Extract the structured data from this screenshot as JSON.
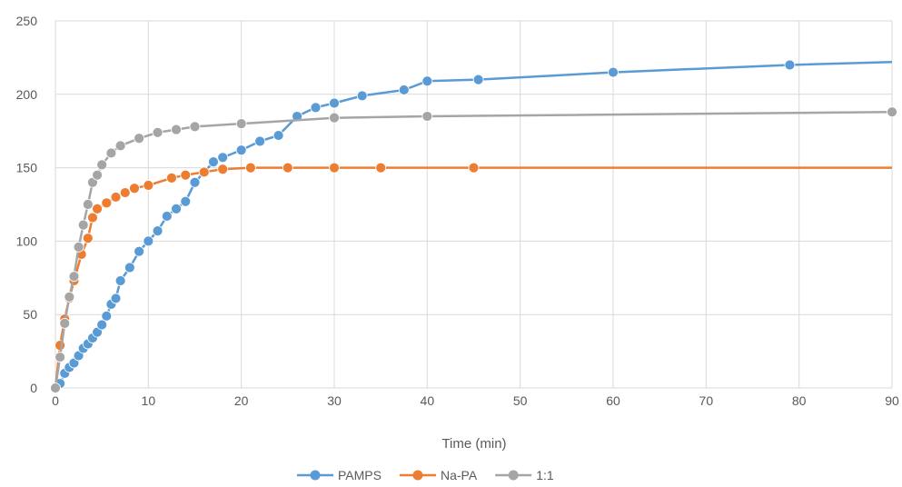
{
  "chart_data": {
    "type": "line",
    "title": "",
    "xlabel": "Time (min)",
    "ylabel": "",
    "xlim": [
      0,
      90
    ],
    "ylim": [
      0,
      250
    ],
    "xticks": [
      0,
      10,
      20,
      30,
      40,
      50,
      60,
      70,
      80,
      90
    ],
    "yticks": [
      0,
      50,
      100,
      150,
      200,
      250
    ],
    "grid": true,
    "legend_position": "bottom",
    "series": [
      {
        "name": "PAMPS",
        "color": "#5B9BD5",
        "points": [
          [
            0,
            0
          ],
          [
            0.5,
            3
          ],
          [
            1,
            10
          ],
          [
            1.5,
            14
          ],
          [
            2,
            17
          ],
          [
            2.5,
            22
          ],
          [
            3,
            27
          ],
          [
            3.5,
            30
          ],
          [
            4,
            34
          ],
          [
            4.5,
            38
          ],
          [
            5,
            43
          ],
          [
            5.5,
            49
          ],
          [
            6,
            57
          ],
          [
            6.5,
            61
          ],
          [
            7,
            73
          ],
          [
            8,
            82
          ],
          [
            9,
            93
          ],
          [
            10,
            100
          ],
          [
            11,
            107
          ],
          [
            12,
            117
          ],
          [
            13,
            122
          ],
          [
            14,
            127
          ],
          [
            15,
            140
          ],
          [
            17,
            154
          ],
          [
            18,
            157
          ],
          [
            20,
            162
          ],
          [
            22,
            168
          ],
          [
            24,
            172
          ],
          [
            26,
            185
          ],
          [
            28,
            191
          ],
          [
            30,
            194
          ],
          [
            33,
            199
          ],
          [
            37.5,
            203
          ],
          [
            40,
            209
          ],
          [
            45.5,
            210
          ],
          [
            60,
            215
          ],
          [
            79,
            220
          ],
          [
            90,
            222
          ]
        ],
        "markers": [
          [
            0,
            0
          ],
          [
            0.5,
            3
          ],
          [
            1,
            10
          ],
          [
            1.5,
            14
          ],
          [
            2,
            17
          ],
          [
            2.5,
            22
          ],
          [
            3,
            27
          ],
          [
            3.5,
            30
          ],
          [
            4,
            34
          ],
          [
            4.5,
            38
          ],
          [
            5,
            43
          ],
          [
            5.5,
            49
          ],
          [
            6,
            57
          ],
          [
            6.5,
            61
          ],
          [
            7,
            73
          ],
          [
            8,
            82
          ],
          [
            9,
            93
          ],
          [
            10,
            100
          ],
          [
            11,
            107
          ],
          [
            12,
            117
          ],
          [
            13,
            122
          ],
          [
            14,
            127
          ],
          [
            15,
            140
          ],
          [
            17,
            154
          ],
          [
            18,
            157
          ],
          [
            20,
            162
          ],
          [
            22,
            168
          ],
          [
            24,
            172
          ],
          [
            26,
            185
          ],
          [
            28,
            191
          ],
          [
            30,
            194
          ],
          [
            33,
            199
          ],
          [
            37.5,
            203
          ],
          [
            40,
            209
          ],
          [
            45.5,
            210
          ],
          [
            60,
            215
          ],
          [
            79,
            220
          ]
        ]
      },
      {
        "name": "Na-PA",
        "color": "#ED7D31",
        "points": [
          [
            0,
            0
          ],
          [
            0.5,
            29
          ],
          [
            1,
            47
          ],
          [
            1.5,
            61
          ],
          [
            2,
            73
          ],
          [
            2.8,
            91
          ],
          [
            3.5,
            102
          ],
          [
            4,
            116
          ],
          [
            4.5,
            122
          ],
          [
            5.5,
            126
          ],
          [
            6.5,
            130
          ],
          [
            7.5,
            133
          ],
          [
            8.5,
            136
          ],
          [
            10,
            138
          ],
          [
            12.5,
            143
          ],
          [
            14,
            145
          ],
          [
            16,
            147
          ],
          [
            18,
            149
          ],
          [
            21,
            150
          ],
          [
            25,
            150
          ],
          [
            30,
            150
          ],
          [
            35,
            150
          ],
          [
            45,
            150
          ],
          [
            90,
            150
          ]
        ],
        "markers": [
          [
            0,
            0
          ],
          [
            0.5,
            29
          ],
          [
            1,
            47
          ],
          [
            1.5,
            61
          ],
          [
            2,
            73
          ],
          [
            2.8,
            91
          ],
          [
            3.5,
            102
          ],
          [
            4,
            116
          ],
          [
            4.5,
            122
          ],
          [
            5.5,
            126
          ],
          [
            6.5,
            130
          ],
          [
            7.5,
            133
          ],
          [
            8.5,
            136
          ],
          [
            10,
            138
          ],
          [
            12.5,
            143
          ],
          [
            14,
            145
          ],
          [
            16,
            147
          ],
          [
            18,
            149
          ],
          [
            21,
            150
          ],
          [
            25,
            150
          ],
          [
            30,
            150
          ],
          [
            35,
            150
          ],
          [
            45,
            150
          ]
        ]
      },
      {
        "name": "1:1",
        "color": "#A5A5A5",
        "points": [
          [
            0,
            0
          ],
          [
            0.5,
            21
          ],
          [
            1,
            44
          ],
          [
            1.5,
            62
          ],
          [
            2,
            76
          ],
          [
            2.5,
            96
          ],
          [
            3,
            111
          ],
          [
            3.5,
            125
          ],
          [
            4,
            140
          ],
          [
            4.5,
            145
          ],
          [
            5,
            152
          ],
          [
            6,
            160
          ],
          [
            7,
            165
          ],
          [
            9,
            170
          ],
          [
            11,
            174
          ],
          [
            13,
            176
          ],
          [
            15,
            178
          ],
          [
            20,
            180
          ],
          [
            30,
            184
          ],
          [
            40,
            185
          ],
          [
            90,
            188
          ]
        ],
        "markers": [
          [
            0,
            0
          ],
          [
            0.5,
            21
          ],
          [
            1,
            44
          ],
          [
            1.5,
            62
          ],
          [
            2,
            76
          ],
          [
            2.5,
            96
          ],
          [
            3,
            111
          ],
          [
            3.5,
            125
          ],
          [
            4,
            140
          ],
          [
            4.5,
            145
          ],
          [
            5,
            152
          ],
          [
            6,
            160
          ],
          [
            7,
            165
          ],
          [
            9,
            170
          ],
          [
            11,
            174
          ],
          [
            13,
            176
          ],
          [
            15,
            178
          ],
          [
            20,
            180
          ],
          [
            30,
            184
          ],
          [
            40,
            185
          ],
          [
            90,
            188
          ]
        ]
      }
    ]
  }
}
